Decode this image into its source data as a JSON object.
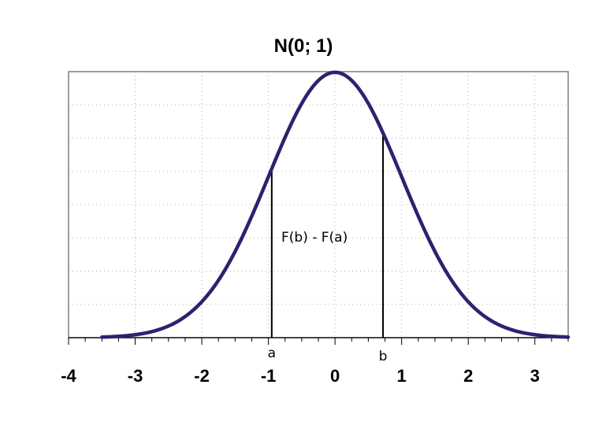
{
  "chart_data": {
    "type": "line",
    "title": "N(0; 1)",
    "xlabel": "",
    "ylabel": "",
    "xlim": [
      -4,
      3.5
    ],
    "ylim": [
      0,
      0.4
    ],
    "x_ticks": [
      -4,
      -3,
      -2,
      -1,
      0,
      1,
      2,
      3
    ],
    "x_tick_labels": [
      "-4",
      "-3",
      "-2",
      "-1",
      "0",
      "1",
      "2",
      "3"
    ],
    "grid": true,
    "curve_domain": [
      -3.5,
      3.5
    ],
    "markers": [
      {
        "label": "a",
        "x": -0.95
      },
      {
        "label": "b",
        "x": 0.72
      }
    ],
    "annotation": "F(b) - F(a)",
    "colors": {
      "curve": "#2b2270",
      "frame": "#7f7f7f",
      "grid": "#b0b0b0",
      "marker": "#000000"
    }
  }
}
